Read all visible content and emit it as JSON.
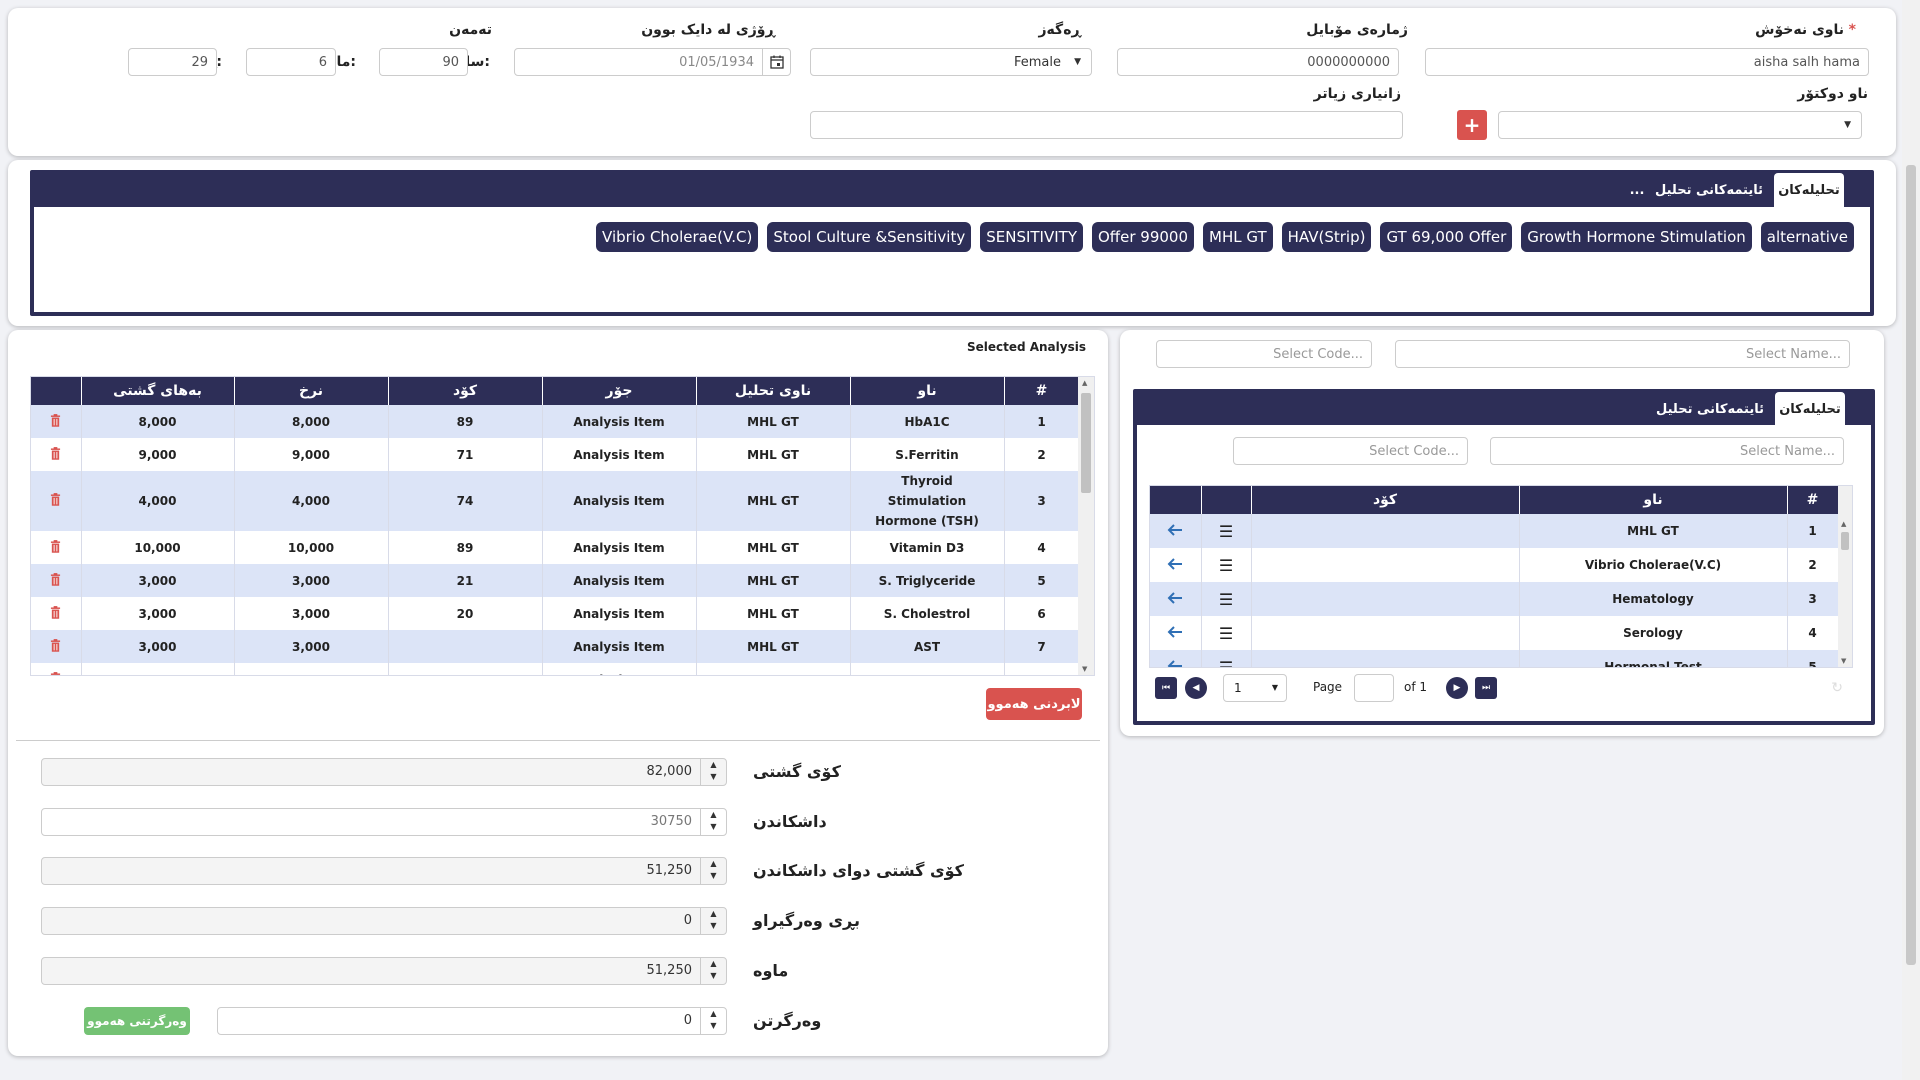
{
  "patient": {
    "name_label": "ناوی نەخۆش",
    "name_required": "*",
    "name_value": "aisha salh hama",
    "mobile_label": "ژمارەی مۆبایل",
    "mobile_value": "0000000000",
    "gender_label": "ڕەگەز",
    "gender_value": "Female",
    "dob_label": "ڕۆژی لە دایک بوون",
    "dob_value": "01/05/1934",
    "age_label": "تەمەن",
    "year_label": "ساڵ:",
    "year_value": "90",
    "month_label": "مانگ:",
    "month_value": "6",
    "day_label": "ڕۆژ:",
    "day_value": "29",
    "doctor_label": "ناو دوکتۆر",
    "extra_label": "زانیاری زیاتر"
  },
  "quick_panel": {
    "tabs": [
      "تحلیلەکان",
      "ئایتمەکانی تحلیل",
      "..."
    ],
    "pills": [
      "alternative",
      "Growth Hormone Stimulation",
      "GT 69,000 Offer",
      "HAV(Strip)",
      "MHL GT",
      "Offer 99000",
      "SENSITIVITY",
      "Stool Culture &Sensitivity",
      "Vibrio Cholerae(V.C)"
    ]
  },
  "selected": {
    "title": "Selected Analysis",
    "headers": [
      "#",
      "ناو",
      "ناوی تحلیل",
      "جۆر",
      "کۆد",
      "نرخ",
      "بەهای گشتی"
    ],
    "rows": [
      {
        "n": "1",
        "name": "HbA1C",
        "analysis": "MHL GT",
        "type": "Analysis Item",
        "code": "89",
        "price": "8,000",
        "total": "8,000"
      },
      {
        "n": "2",
        "name": "S.Ferritin",
        "analysis": "MHL GT",
        "type": "Analysis Item",
        "code": "71",
        "price": "9,000",
        "total": "9,000"
      },
      {
        "n": "3",
        "name": "Thyroid Stimulation Hormone (TSH)",
        "analysis": "MHL GT",
        "type": "Analysis Item",
        "code": "74",
        "price": "4,000",
        "total": "4,000"
      },
      {
        "n": "4",
        "name": "Vitamin D3",
        "analysis": "MHL GT",
        "type": "Analysis Item",
        "code": "89",
        "price": "10,000",
        "total": "10,000"
      },
      {
        "n": "5",
        "name": "S. Triglyceride",
        "analysis": "MHL GT",
        "type": "Analysis Item",
        "code": "21",
        "price": "3,000",
        "total": "3,000"
      },
      {
        "n": "6",
        "name": "S. Cholestrol",
        "analysis": "MHL GT",
        "type": "Analysis Item",
        "code": "20",
        "price": "3,000",
        "total": "3,000"
      },
      {
        "n": "7",
        "name": "AST",
        "analysis": "MHL GT",
        "type": "Analysis Item",
        "code": "",
        "price": "3,000",
        "total": "3,000"
      },
      {
        "n": "8",
        "name": "ALT",
        "analysis": "MHL GT",
        "type": "Analysis Item",
        "code": "8",
        "price": "3,000",
        "total": "3,000"
      }
    ],
    "remove_all": "لابردنی هەموو"
  },
  "summary": {
    "total_label": "کۆی گشتی",
    "total_value": "82,000",
    "discount_label": "داشکاندن",
    "discount_value": "30750",
    "after_discount_label": "کۆی گشتی دوای داشکاندن",
    "after_discount_value": "51,250",
    "received_amount_label": "بڕی وەرگیراو",
    "received_amount_value": "0",
    "remaining_label": "ماوە",
    "remaining_value": "51,250",
    "receive_label": "وەرگرتن",
    "receive_value": "0",
    "receive_all_button": "وەرگرتنی هەموو"
  },
  "search": {
    "name_placeholder": "Select Name...",
    "code_placeholder": "Select Code...",
    "tabs": [
      "تحلیلەکان",
      "ئایتمەکانی تحلیل"
    ],
    "inner_name_placeholder": "Select Name...",
    "inner_code_placeholder": "Select Code...",
    "headers": [
      "#",
      "ناو",
      "کۆد"
    ],
    "rows": [
      {
        "n": "1",
        "name": "MHL GT"
      },
      {
        "n": "2",
        "name": "Vibrio Cholerae(V.C)"
      },
      {
        "n": "3",
        "name": "Hematology"
      },
      {
        "n": "4",
        "name": "Serology"
      },
      {
        "n": "5",
        "name": "Hormonal Test"
      }
    ],
    "pager": {
      "page_label": "Page",
      "page_value": "1",
      "of_label": "of 1",
      "size_value": "1"
    }
  },
  "colors": {
    "navy": "#2d2e57",
    "red": "#d9534f",
    "green": "#5cb85c",
    "alt_row": "#dce4f7"
  }
}
